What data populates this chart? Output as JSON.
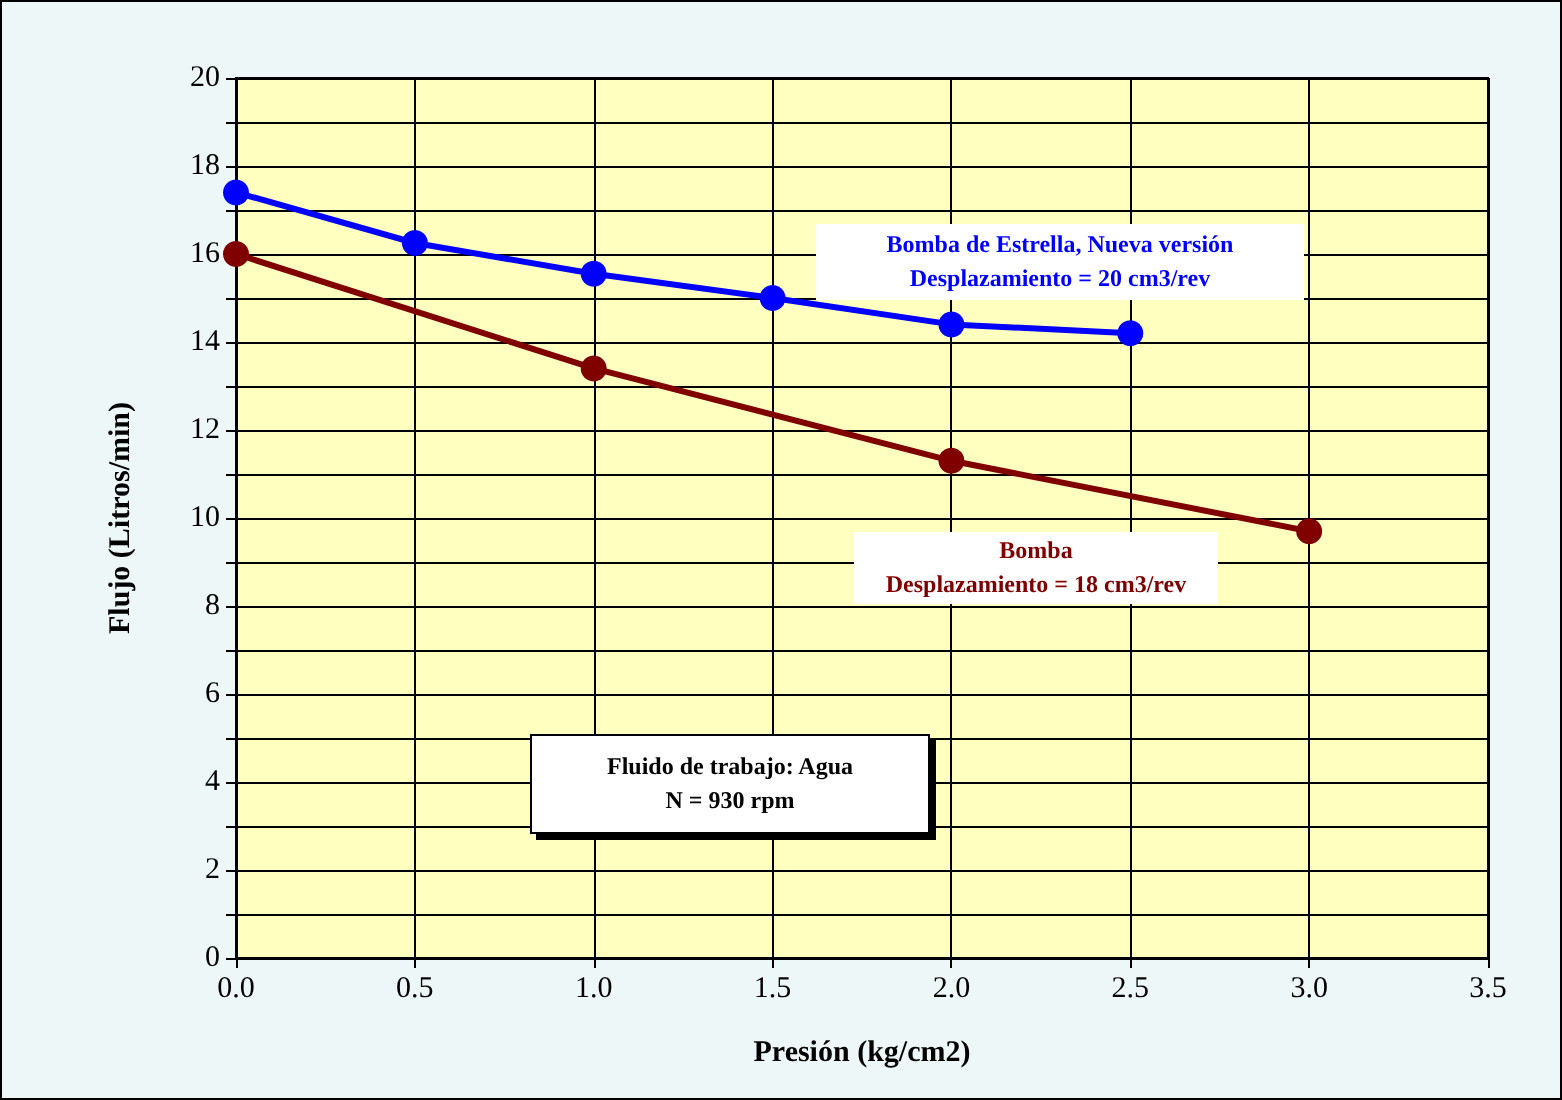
{
  "chart_data": {
    "type": "line",
    "xlabel": "Presión (kg/cm2)",
    "ylabel": "Flujo (Litros/min)",
    "series": [
      {
        "color": "#0000ff",
        "x": [
          0,
          0.5,
          1,
          1.5,
          2,
          2.5
        ],
        "values": [
          17.4,
          16.25,
          15.55,
          15.0,
          14.4,
          14.2
        ]
      },
      {
        "color": "#800000",
        "x": [
          0,
          1,
          2,
          3
        ],
        "values": [
          16.0,
          13.4,
          11.3,
          9.7
        ]
      }
    ],
    "xlim": [
      0,
      3.5
    ],
    "xticks": [
      {
        "value": 0,
        "label": "0.0"
      },
      {
        "value": 0.5,
        "label": "0.5"
      },
      {
        "value": 1,
        "label": "1.0"
      },
      {
        "value": 1.5,
        "label": "1.5"
      },
      {
        "value": 2,
        "label": "2.0"
      },
      {
        "value": 2.5,
        "label": "2.5"
      },
      {
        "value": 3,
        "label": "3.0"
      },
      {
        "value": 3.5,
        "label": "3.5"
      }
    ],
    "ylim": [
      0,
      20
    ],
    "yticks": [
      0,
      {
        "value": 1,
        "label": null
      },
      2,
      {
        "value": 3,
        "label": null
      },
      4,
      {
        "value": 5,
        "label": null
      },
      6,
      {
        "value": 7,
        "label": null
      },
      8,
      {
        "value": 9,
        "label": null
      },
      10,
      {
        "value": 11,
        "label": null
      },
      12,
      {
        "value": 13,
        "label": null
      },
      14,
      {
        "value": 15,
        "label": null
      },
      16,
      {
        "value": 17,
        "label": null
      },
      18,
      {
        "value": 19,
        "label": null
      },
      20
    ],
    "annotations": [
      "Bomba de Estrella, Nueva versión\nDesplazamiento = 20 cm3/rev",
      "Bomba\nDesplazamiento = 18 cm3/rev",
      "Fluido de trabajo: Agua\nN = 930 rpm"
    ],
    "grid": true,
    "marker": "circle",
    "line_style": "solid"
  }
}
